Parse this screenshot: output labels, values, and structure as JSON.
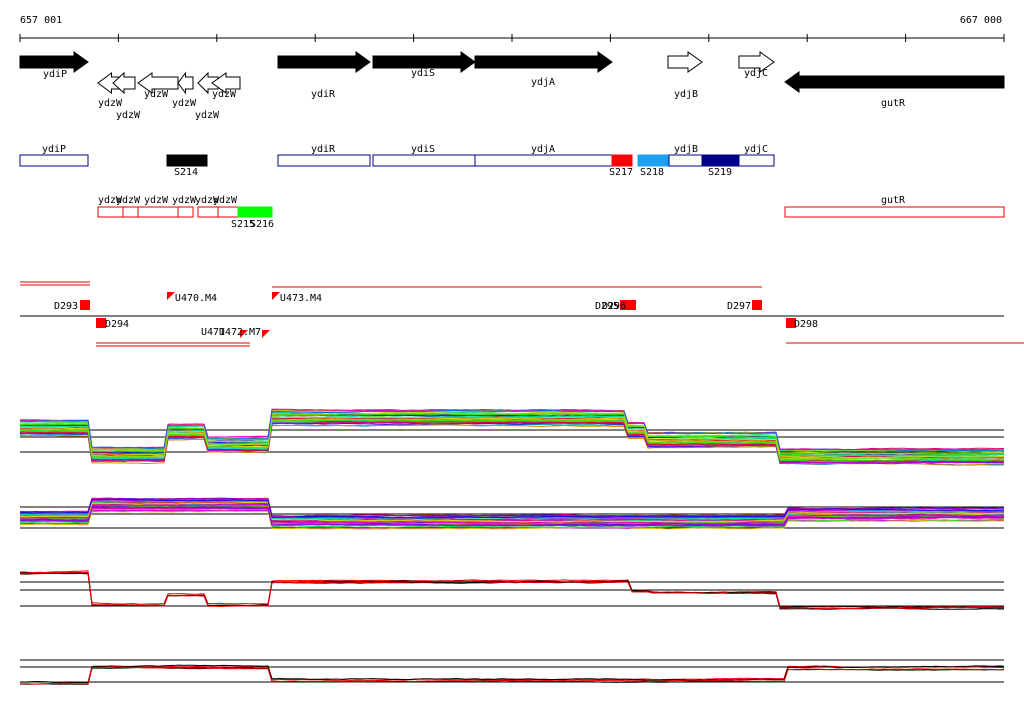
{
  "ruler": {
    "start": "657 001",
    "end": "667 000"
  },
  "genes": [
    "ydiP",
    "ydzW",
    "ydzW",
    "ydzW",
    "ydzW",
    "ydzW",
    "ydzW",
    "ydiR",
    "ydiS",
    "ydjA",
    "ydjB",
    "ydjC",
    "gutR"
  ],
  "cds": [
    "ydiP",
    "S214",
    "ydiR",
    "ydiS",
    "ydjA",
    "S217",
    "S218",
    "ydjB",
    "S219",
    "ydjC"
  ],
  "transcripts": [
    "ydzW",
    "ydzW",
    "ydzW",
    "ydzW",
    "ydzW",
    "ydzW",
    "S215",
    "S216",
    "gutR"
  ],
  "probes": [
    "D293",
    "D294",
    "U470.M4",
    "U471",
    "U472.M7",
    "U473.M4",
    "D295",
    "D296",
    "D297",
    "D298"
  ]
}
